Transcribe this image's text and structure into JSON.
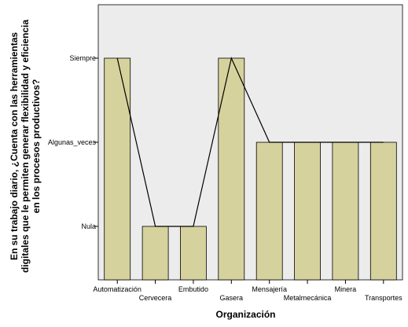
{
  "chart_data": {
    "type": "bar",
    "xlabel": "Organización",
    "ylabel_lines": [
      "En su trabajo diario, ¿Cuenta con las herramientas",
      "digitales que le permiten generar flexibilidad y eficiencia",
      "en los procesos productivos?"
    ],
    "y_levels": [
      "Nula",
      "Algunas_veces",
      "Siempre"
    ],
    "categories": [
      "Automatización",
      "Cervecera",
      "Embutido",
      "Gasera",
      "Mensajería",
      "Metalmecánica",
      "Minera",
      "Transportes"
    ],
    "values": [
      "Siempre",
      "Nula",
      "Nula",
      "Siempre",
      "Algunas_veces",
      "Algunas_veces",
      "Algunas_veces",
      "Algunas_veces"
    ],
    "line_overlay": true,
    "grid": false,
    "colors": {
      "bar_fill": "#d6d29e",
      "bar_stroke": "#000000",
      "plot_background": "#ececec",
      "line": "#000000"
    }
  }
}
